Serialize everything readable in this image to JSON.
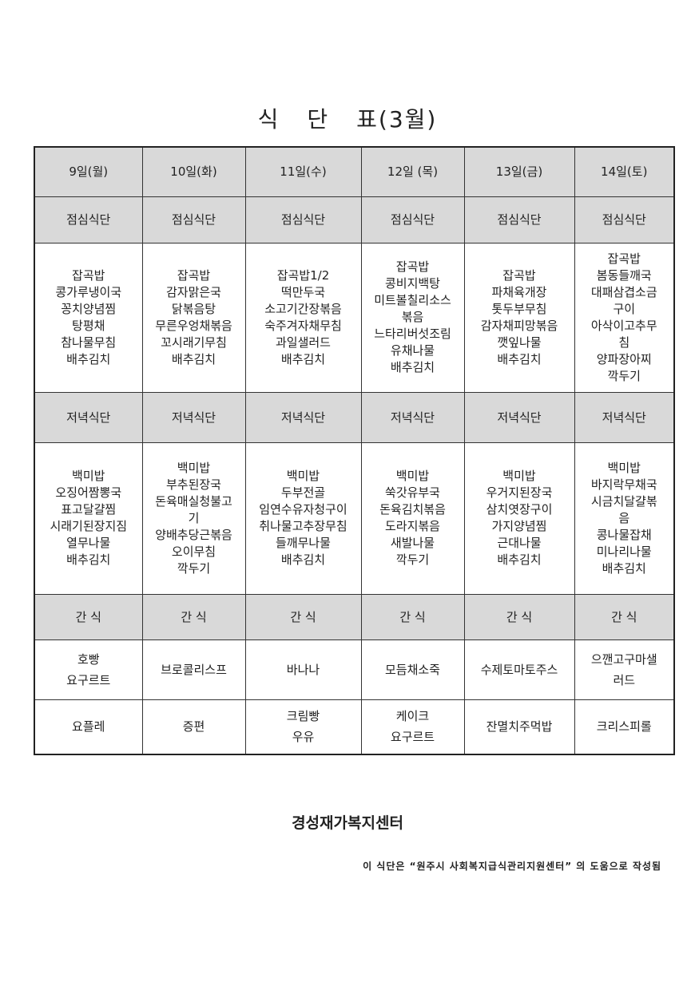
{
  "title": {
    "prefix": "식",
    "mid": "단",
    "suffix": "표(3월)"
  },
  "days": [
    "9일(월)",
    "10일(화)",
    "11일(수)",
    "12일 (목)",
    "13일(금)",
    "14일(토)"
  ],
  "lunch_label": "점심식단",
  "dinner_label": "저녁식단",
  "snack_label": "간 식",
  "lunch": [
    [
      "잡곡밥",
      "콩가루냉이국",
      "꽁치양념찜",
      "탕평채",
      "참나물무침",
      "배추김치"
    ],
    [
      "잡곡밥",
      "감자맑은국",
      "닭볶음탕",
      "무른우엉채볶음",
      "꼬시래기무침",
      "배추김치"
    ],
    [
      "잡곡밥1/2",
      "떡만두국",
      "소고기간장볶음",
      "숙주겨자채무침",
      "과일샐러드",
      "배추김치"
    ],
    [
      "잡곡밥",
      "콩비지백탕",
      "미트볼칠리소스",
      "볶음",
      "느타리버섯조림",
      "유채나물",
      "배추김치"
    ],
    [
      "잡곡밥",
      "파채육개장",
      "톳두부무침",
      "감자채피망볶음",
      "깻잎나물",
      "배추김치"
    ],
    [
      "잡곡밥",
      "봄동들깨국",
      "대패삼겹소금",
      "구이",
      "아삭이고추무",
      "침",
      "양파장아찌",
      "깍두기"
    ]
  ],
  "dinner": [
    [
      "백미밥",
      "오징어짬뽕국",
      "표고달걀찜",
      "시래기된장지짐",
      "열무나물",
      "배추김치"
    ],
    [
      "백미밥",
      "부추된장국",
      "돈육매실청불고",
      "기",
      "양배추당근볶음",
      "오이무침",
      "깍두기"
    ],
    [
      "백미밥",
      "두부전골",
      "임연수유자청구이",
      "취나물고추장무침",
      "들깨무나물",
      "배추김치"
    ],
    [
      "백미밥",
      "쑥갓유부국",
      "돈육김치볶음",
      "도라지볶음",
      "새발나물",
      "깍두기"
    ],
    [
      "백미밥",
      "우거지된장국",
      "삼치엿장구이",
      "가지양념찜",
      "근대나물",
      "배추김치"
    ],
    [
      "백미밥",
      "바지락무채국",
      "시금치달걀볶",
      "음",
      "콩나물잡채",
      "미나리나물",
      "배추김치"
    ]
  ],
  "snack1": [
    [
      "호빵",
      "요구르트"
    ],
    [
      "브로콜리스프"
    ],
    [
      "바나나"
    ],
    [
      "모듬채소죽"
    ],
    [
      "수제토마토주스"
    ],
    [
      "으깬고구마샐",
      "러드"
    ]
  ],
  "snack2": [
    [
      "요플레"
    ],
    [
      "증편"
    ],
    [
      "크림빵",
      "우유"
    ],
    [
      "케이크",
      "요구르트"
    ],
    [
      "잔멸치주먹밥"
    ],
    [
      "크리스피롤"
    ]
  ],
  "organization": "경성재가복지센터",
  "note": "이 식단은 “원주시 사회복지급식관리지원센터” 의 도움으로 작성됨",
  "colors": {
    "header_bg": "#d9d9d9",
    "border": "#333333"
  }
}
